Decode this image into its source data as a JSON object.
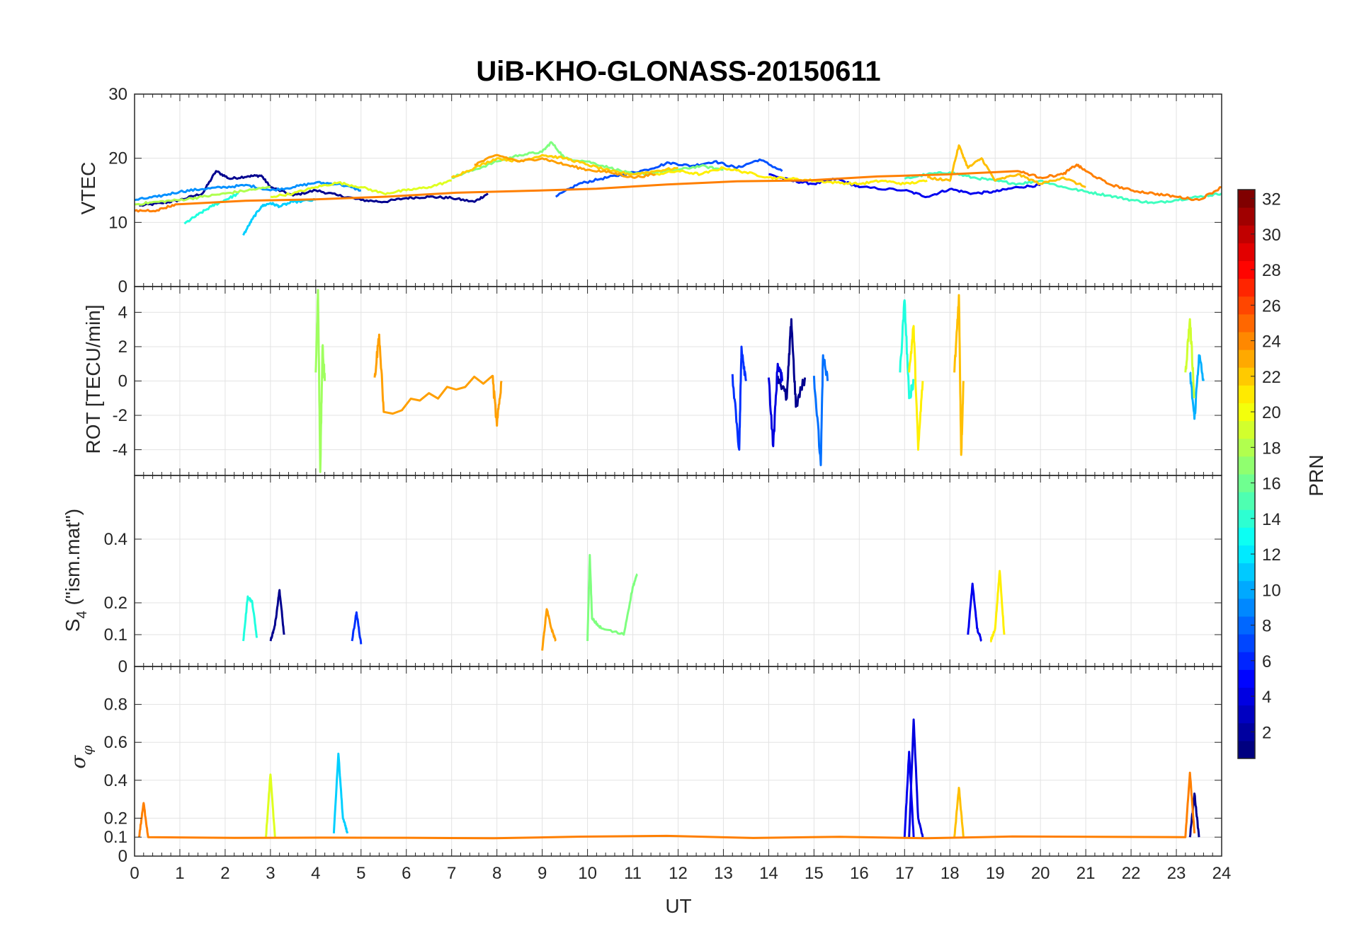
{
  "chart_data": [
    {
      "type": "line",
      "panel": "vtec",
      "title": "UiB-KHO-GLONASS-20150611",
      "ylabel": "VTEC",
      "xlim": [
        0,
        24
      ],
      "ylim": [
        0,
        30
      ],
      "yticks": [
        0,
        10,
        20,
        30
      ],
      "grid": true,
      "series": [
        {
          "prn": 1,
          "color": "#00008f",
          "x": [
            0.1,
            0.6,
            1.0,
            1.5,
            1.8,
            2.1,
            2.5,
            2.8,
            3.0,
            3.5,
            4.0,
            4.5,
            5.0,
            5.5,
            6.0,
            6.5,
            7.0,
            7.5,
            7.8
          ],
          "y": [
            12.6,
            13.0,
            13.5,
            14.5,
            18.0,
            16.8,
            17.2,
            17.3,
            15.5,
            14.2,
            15.0,
            14.2,
            13.5,
            13.2,
            13.8,
            14.0,
            13.8,
            13.2,
            14.5
          ]
        },
        {
          "prn": 4,
          "color": "#0000ef",
          "x": [
            14.0,
            14.5,
            15.0,
            15.5,
            16.0,
            17.0,
            17.5,
            18.0,
            18.5,
            19.0,
            19.5,
            20.0
          ],
          "y": [
            17.5,
            16.5,
            16.0,
            16.8,
            15.5,
            15.0,
            14.0,
            15.2,
            14.5,
            14.8,
            15.5,
            15.8
          ]
        },
        {
          "prn": 6,
          "color": "#0050ff",
          "x": [
            9.3,
            9.8,
            10.3,
            10.8,
            11.3,
            11.8,
            12.3,
            12.8,
            13.3,
            13.8,
            14.3
          ],
          "y": [
            14.0,
            16.0,
            16.8,
            17.5,
            18.2,
            19.3,
            18.8,
            19.5,
            18.5,
            19.8,
            18.0
          ]
        },
        {
          "prn": 8,
          "color": "#0090ff",
          "x": [
            0.0,
            0.5,
            1.0,
            1.5,
            2.0,
            2.5,
            3.0,
            3.5,
            4.0,
            4.5,
            5.0
          ],
          "y": [
            13.5,
            14.0,
            14.8,
            15.2,
            15.5,
            15.8,
            15.0,
            15.5,
            16.2,
            16.0,
            15.0
          ]
        },
        {
          "prn": 11,
          "color": "#00cfff",
          "x": [
            2.4,
            2.6,
            2.8,
            3.0,
            3.2,
            3.5,
            4.0
          ],
          "y": [
            8.0,
            10.5,
            12.5,
            13.0,
            12.5,
            13.2,
            13.5
          ]
        },
        {
          "prn": 12,
          "color": "#1fffdf",
          "x": [
            1.1,
            1.4,
            1.7,
            2.0,
            2.3
          ],
          "y": [
            9.8,
            11.2,
            12.5,
            13.5,
            14.5
          ]
        },
        {
          "prn": 13,
          "color": "#3fffbf",
          "x": [
            17.0,
            17.5,
            18.0,
            18.5,
            19.0,
            19.5,
            20.0,
            20.5,
            21.0,
            21.5,
            22.0,
            22.5,
            23.0,
            23.5,
            24.0
          ],
          "y": [
            16.8,
            17.5,
            17.8,
            17.0,
            16.5,
            16.0,
            16.5,
            15.5,
            14.8,
            14.2,
            13.5,
            13.0,
            13.5,
            14.0,
            14.5
          ]
        },
        {
          "prn": 15,
          "color": "#7fff7f",
          "x": [
            7.0,
            7.5,
            8.0,
            8.5,
            9.0,
            9.2,
            9.5,
            10.0,
            10.5,
            11.0,
            11.5,
            12.0,
            12.5,
            13.0
          ],
          "y": [
            17.0,
            18.2,
            19.5,
            20.5,
            21.0,
            22.5,
            20.0,
            19.5,
            18.5,
            17.5,
            17.8,
            18.2,
            18.8,
            18.2
          ]
        },
        {
          "prn": 17,
          "color": "#afff4f",
          "x": [
            0.0,
            0.5,
            1.0,
            1.5,
            2.0,
            2.5,
            3.0
          ],
          "y": [
            12.8,
            13.2,
            13.5,
            14.0,
            14.5,
            15.0,
            15.5
          ]
        },
        {
          "prn": 19,
          "color": "#dfff1f",
          "x": [
            3.0,
            3.5,
            4.0,
            4.5,
            5.0,
            5.5,
            6.0,
            6.5,
            7.0
          ],
          "y": [
            14.0,
            14.5,
            15.5,
            16.2,
            15.5,
            14.5,
            15.0,
            15.5,
            16.5
          ]
        },
        {
          "prn": 20,
          "color": "#ffef00",
          "x": [
            11.5,
            12.0,
            12.5,
            13.0,
            13.5,
            14.0,
            14.5,
            15.0,
            15.5,
            16.0,
            16.5,
            17.0,
            17.5
          ],
          "y": [
            17.5,
            18.0,
            17.5,
            18.5,
            17.8,
            17.0,
            16.8,
            16.5,
            16.2,
            16.0,
            16.5,
            16.0,
            16.5
          ]
        },
        {
          "prn": 21,
          "color": "#ffcf00",
          "x": [
            7.0,
            7.5,
            8.0,
            8.5,
            9.0,
            9.5,
            10.0,
            10.5,
            11.0,
            11.5,
            12.0
          ],
          "y": [
            17.0,
            18.5,
            20.0,
            19.5,
            20.5,
            20.0,
            19.0,
            18.0,
            17.5,
            18.0,
            18.5
          ]
        },
        {
          "prn": 22,
          "color": "#ffbf00",
          "x": [
            17.5,
            18.0,
            18.2,
            18.4,
            18.7,
            19.0,
            19.5,
            20.0,
            20.5,
            21.0
          ],
          "y": [
            17.0,
            16.5,
            22.0,
            18.5,
            20.0,
            16.5,
            17.5,
            16.0,
            17.0,
            15.5
          ]
        },
        {
          "prn": 23,
          "color": "#ff9f00",
          "x": [
            7.5,
            8.0,
            8.5,
            9.0,
            9.5,
            10.0,
            10.5,
            11.0,
            11.5
          ],
          "y": [
            19.0,
            20.5,
            19.5,
            20.0,
            19.0,
            18.2,
            17.8,
            17.0,
            17.5
          ]
        },
        {
          "prn": 24,
          "color": "#ff7f00",
          "x": [
            0.0,
            0.5,
            0.9,
            19.5,
            20.0,
            20.5,
            20.8,
            21.0,
            21.5,
            22.0,
            22.5,
            23.0,
            23.5,
            24.0
          ],
          "y": [
            11.8,
            11.9,
            12.8,
            18.0,
            17.0,
            17.5,
            19.0,
            18.0,
            16.0,
            15.0,
            14.5,
            14.0,
            13.5,
            15.5
          ]
        }
      ]
    },
    {
      "type": "line",
      "panel": "rot",
      "ylabel": "ROT [TECU/min]",
      "xlim": [
        0,
        24
      ],
      "ylim": [
        -5.5,
        5.5
      ],
      "yticks": [
        -4,
        -2,
        0,
        2,
        4
      ],
      "grid": true,
      "series": [
        {
          "prn": 1,
          "color": "#00008f",
          "x": [
            14.2,
            14.4,
            14.5,
            14.6,
            14.8
          ],
          "y": [
            0.3,
            -1.0,
            3.6,
            -1.5,
            0.2
          ]
        },
        {
          "prn": 3,
          "color": "#0000df",
          "x": [
            14.0,
            14.1,
            14.2,
            14.3
          ],
          "y": [
            0.2,
            -3.8,
            1.0,
            0.0
          ]
        },
        {
          "prn": 5,
          "color": "#0030ff",
          "x": [
            13.2,
            13.35,
            13.4,
            13.5
          ],
          "y": [
            0.4,
            -4.0,
            2.0,
            0.0
          ]
        },
        {
          "prn": 7,
          "color": "#0070ff",
          "x": [
            15.0,
            15.15,
            15.2,
            15.3
          ],
          "y": [
            0.3,
            -4.9,
            1.5,
            0.0
          ]
        },
        {
          "prn": 10,
          "color": "#00b0ff",
          "x": [
            23.3,
            23.4,
            23.5,
            23.6
          ],
          "y": [
            0.5,
            -2.2,
            1.5,
            0.0
          ]
        },
        {
          "prn": 12,
          "color": "#1fffdf",
          "x": [
            16.9,
            17.0,
            17.1,
            17.2
          ],
          "y": [
            0.5,
            4.7,
            -1.0,
            0.0
          ]
        },
        {
          "prn": 16,
          "color": "#9fff5f",
          "x": [
            4.0,
            4.05,
            4.1,
            4.15,
            4.2
          ],
          "y": [
            0.5,
            5.3,
            -5.3,
            2.0,
            0.0
          ]
        },
        {
          "prn": 18,
          "color": "#cfff2f",
          "x": [
            23.2,
            23.3,
            23.4
          ],
          "y": [
            0.5,
            3.6,
            -1.0
          ]
        },
        {
          "prn": 20,
          "color": "#ffef00",
          "x": [
            17.1,
            17.2,
            17.3,
            17.4
          ],
          "y": [
            0.5,
            3.2,
            -4.0,
            0.0
          ]
        },
        {
          "prn": 22,
          "color": "#ffbf00",
          "x": [
            18.1,
            18.2,
            18.25,
            18.3
          ],
          "y": [
            0.5,
            5.0,
            -4.3,
            0.0
          ]
        },
        {
          "prn": 23,
          "color": "#ff9f00",
          "x": [
            5.3,
            5.4,
            5.5,
            7.9,
            8.0,
            8.1
          ],
          "y": [
            0.2,
            2.7,
            -1.8,
            0.3,
            -2.6,
            0.0
          ]
        }
      ]
    },
    {
      "type": "line",
      "panel": "s4",
      "ylabel": "S4 (\"ism.mat\")",
      "xlim": [
        0,
        24
      ],
      "ylim": [
        0,
        0.6
      ],
      "yticks": [
        0,
        0.1,
        0.2,
        0.4
      ],
      "grid": true,
      "series": [
        {
          "prn": 1,
          "color": "#00008f",
          "x": [
            3.0,
            3.1,
            3.2,
            3.3
          ],
          "y": [
            0.08,
            0.13,
            0.24,
            0.1
          ]
        },
        {
          "prn": 4,
          "color": "#0000ef",
          "x": [
            18.4,
            18.5,
            18.6,
            18.7
          ],
          "y": [
            0.1,
            0.26,
            0.12,
            0.08
          ]
        },
        {
          "prn": 5,
          "color": "#0030ff",
          "x": [
            4.8,
            4.9,
            5.0
          ],
          "y": [
            0.08,
            0.17,
            0.07
          ]
        },
        {
          "prn": 12,
          "color": "#1fffdf",
          "x": [
            2.4,
            2.5,
            2.6,
            2.7
          ],
          "y": [
            0.08,
            0.22,
            0.2,
            0.09
          ]
        },
        {
          "prn": 15,
          "color": "#7fff7f",
          "x": [
            10.0,
            10.05,
            10.1,
            10.3,
            10.8,
            11.0,
            11.1
          ],
          "y": [
            0.08,
            0.35,
            0.15,
            0.12,
            0.1,
            0.25,
            0.29
          ]
        },
        {
          "prn": 20,
          "color": "#ffef00",
          "x": [
            18.9,
            19.0,
            19.1,
            19.2
          ],
          "y": [
            0.08,
            0.12,
            0.3,
            0.1
          ]
        },
        {
          "prn": 23,
          "color": "#ff9f00",
          "x": [
            9.0,
            9.1,
            9.2,
            9.3
          ],
          "y": [
            0.05,
            0.18,
            0.12,
            0.08
          ]
        }
      ]
    },
    {
      "type": "line",
      "panel": "sigma_phi",
      "ylabel": "σφ",
      "xlabel": "UT",
      "xlim": [
        0,
        24
      ],
      "ylim": [
        0,
        1.0
      ],
      "yticks": [
        0,
        0.1,
        0.2,
        0.4,
        0.6,
        0.8
      ],
      "xticks": [
        0,
        1,
        2,
        3,
        4,
        5,
        6,
        7,
        8,
        9,
        10,
        11,
        12,
        13,
        14,
        15,
        16,
        17,
        18,
        19,
        20,
        21,
        22,
        23,
        24
      ],
      "grid": true,
      "series": [
        {
          "prn": 1,
          "color": "#00008f",
          "x": [
            23.3,
            23.4,
            23.5
          ],
          "y": [
            0.1,
            0.33,
            0.1
          ]
        },
        {
          "prn": 3,
          "color": "#0000df",
          "x": [
            17.1,
            17.2,
            17.3,
            17.4
          ],
          "y": [
            0.1,
            0.72,
            0.2,
            0.1
          ]
        },
        {
          "prn": 4,
          "color": "#0000ef",
          "x": [
            17.0,
            17.1,
            17.2
          ],
          "y": [
            0.1,
            0.55,
            0.1
          ]
        },
        {
          "prn": 11,
          "color": "#00cfff",
          "x": [
            4.4,
            4.5,
            4.6,
            4.7
          ],
          "y": [
            0.12,
            0.54,
            0.2,
            0.12
          ]
        },
        {
          "prn": 19,
          "color": "#dfff1f",
          "x": [
            2.9,
            3.0,
            3.1
          ],
          "y": [
            0.1,
            0.43,
            0.1
          ]
        },
        {
          "prn": 22,
          "color": "#ffbf00",
          "x": [
            18.1,
            18.2,
            18.3
          ],
          "y": [
            0.1,
            0.36,
            0.1
          ]
        },
        {
          "prn": 24,
          "color": "#ff7f00",
          "x": [
            0.1,
            0.2,
            0.3,
            23.2,
            23.3,
            23.4
          ],
          "y": [
            0.1,
            0.28,
            0.1,
            0.1,
            0.44,
            0.12
          ]
        }
      ]
    }
  ],
  "figure": {
    "title": "UiB-KHO-GLONASS-20150611",
    "xlabel": "UT",
    "ylabels": {
      "vtec": "VTEC",
      "rot": "ROT [TECU/min]",
      "s4_main": "S",
      "s4_sub": "4",
      "s4_rest": " (\"ism.mat\")",
      "sigma_main": "σ",
      "sigma_sub": "φ"
    }
  },
  "colorbar": {
    "label": "PRN",
    "range": [
      1,
      32
    ],
    "ticks": [
      2,
      4,
      6,
      8,
      10,
      12,
      14,
      16,
      18,
      20,
      22,
      24,
      26,
      28,
      30,
      32
    ],
    "colormap": "jet"
  },
  "colors": {
    "axis": "#262626",
    "grid": "#e3e3e3"
  }
}
